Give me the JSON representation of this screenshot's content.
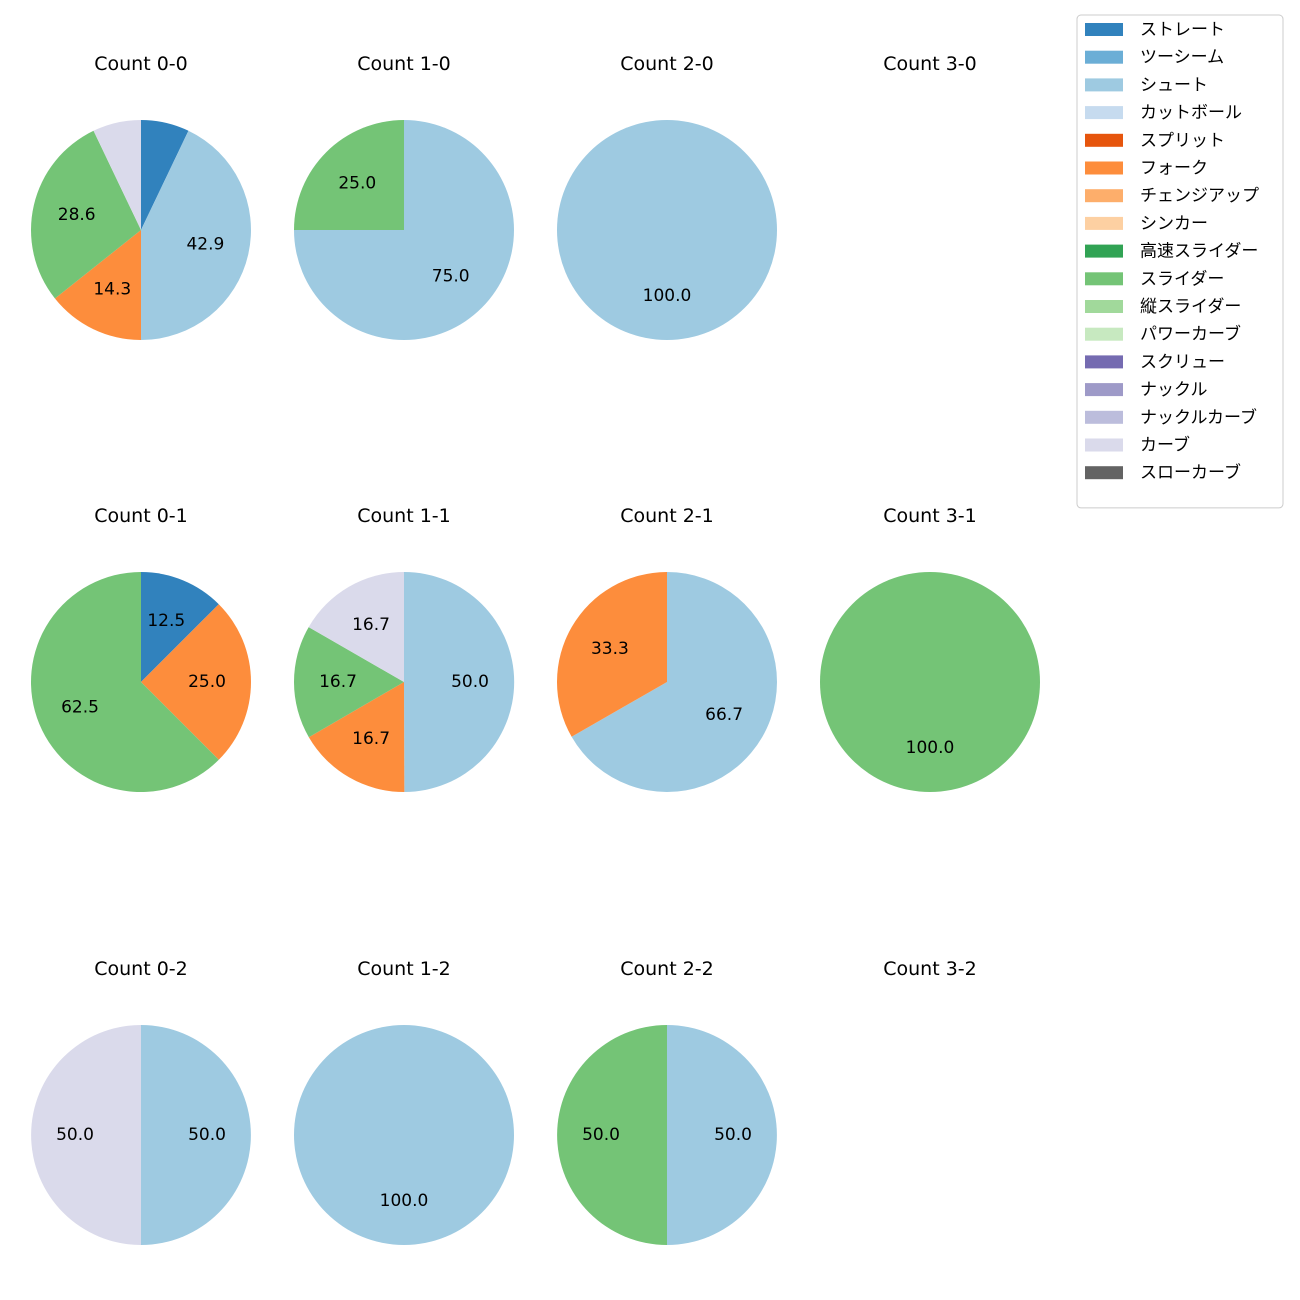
{
  "legend": {
    "placement": "top-right",
    "entries": [
      {
        "name": "ストレート",
        "color": "#3182bd"
      },
      {
        "name": "ツーシーム",
        "color": "#6baed6"
      },
      {
        "name": "シュート",
        "color": "#9ecae1"
      },
      {
        "name": "カットボール",
        "color": "#c6dbef"
      },
      {
        "name": "スプリット",
        "color": "#e6550d"
      },
      {
        "name": "フォーク",
        "color": "#fd8d3c"
      },
      {
        "name": "チェンジアップ",
        "color": "#fdae6b"
      },
      {
        "name": "シンカー",
        "color": "#fdd0a2"
      },
      {
        "name": "高速スライダー",
        "color": "#31a354"
      },
      {
        "name": "スライダー",
        "color": "#74c476"
      },
      {
        "name": "縦スライダー",
        "color": "#a1d99b"
      },
      {
        "name": "パワーカーブ",
        "color": "#c7e9c0"
      },
      {
        "name": "スクリュー",
        "color": "#756bb1"
      },
      {
        "name": "ナックル",
        "color": "#9e9ac8"
      },
      {
        "name": "ナックルカーブ",
        "color": "#bcbddc"
      },
      {
        "name": "カーブ",
        "color": "#dadaeb"
      },
      {
        "name": "スローカーブ",
        "color": "#636363"
      }
    ]
  },
  "chart_data": [
    {
      "type": "pie",
      "title": "Count 0-0",
      "slices": [
        {
          "label": "ストレート",
          "value": 7.1,
          "show_label": false
        },
        {
          "label": "シュート",
          "value": 42.9
        },
        {
          "label": "フォーク",
          "value": 14.3
        },
        {
          "label": "スライダー",
          "value": 28.6
        },
        {
          "label": "カーブ",
          "value": 7.1,
          "show_label": false
        }
      ]
    },
    {
      "type": "pie",
      "title": "Count 1-0",
      "slices": [
        {
          "label": "シュート",
          "value": 75.0
        },
        {
          "label": "スライダー",
          "value": 25.0
        }
      ]
    },
    {
      "type": "pie",
      "title": "Count 2-0",
      "slices": [
        {
          "label": "シュート",
          "value": 100.0
        }
      ]
    },
    {
      "type": "pie",
      "title": "Count 3-0",
      "slices": []
    },
    {
      "type": "pie",
      "title": "Count 0-1",
      "slices": [
        {
          "label": "ストレート",
          "value": 12.5
        },
        {
          "label": "フォーク",
          "value": 25.0
        },
        {
          "label": "スライダー",
          "value": 62.5
        }
      ]
    },
    {
      "type": "pie",
      "title": "Count 1-1",
      "slices": [
        {
          "label": "シュート",
          "value": 50.0
        },
        {
          "label": "フォーク",
          "value": 16.7
        },
        {
          "label": "スライダー",
          "value": 16.7
        },
        {
          "label": "カーブ",
          "value": 16.7
        }
      ]
    },
    {
      "type": "pie",
      "title": "Count 2-1",
      "slices": [
        {
          "label": "シュート",
          "value": 66.7
        },
        {
          "label": "フォーク",
          "value": 33.3
        }
      ]
    },
    {
      "type": "pie",
      "title": "Count 3-1",
      "slices": [
        {
          "label": "スライダー",
          "value": 100.0
        }
      ]
    },
    {
      "type": "pie",
      "title": "Count 0-2",
      "slices": [
        {
          "label": "シュート",
          "value": 50.0
        },
        {
          "label": "カーブ",
          "value": 50.0
        }
      ]
    },
    {
      "type": "pie",
      "title": "Count 1-2",
      "slices": [
        {
          "label": "シュート",
          "value": 100.0
        }
      ]
    },
    {
      "type": "pie",
      "title": "Count 2-2",
      "slices": [
        {
          "label": "シュート",
          "value": 50.0
        },
        {
          "label": "スライダー",
          "value": 50.0
        }
      ]
    },
    {
      "type": "pie",
      "title": "Count 3-2",
      "slices": []
    }
  ]
}
